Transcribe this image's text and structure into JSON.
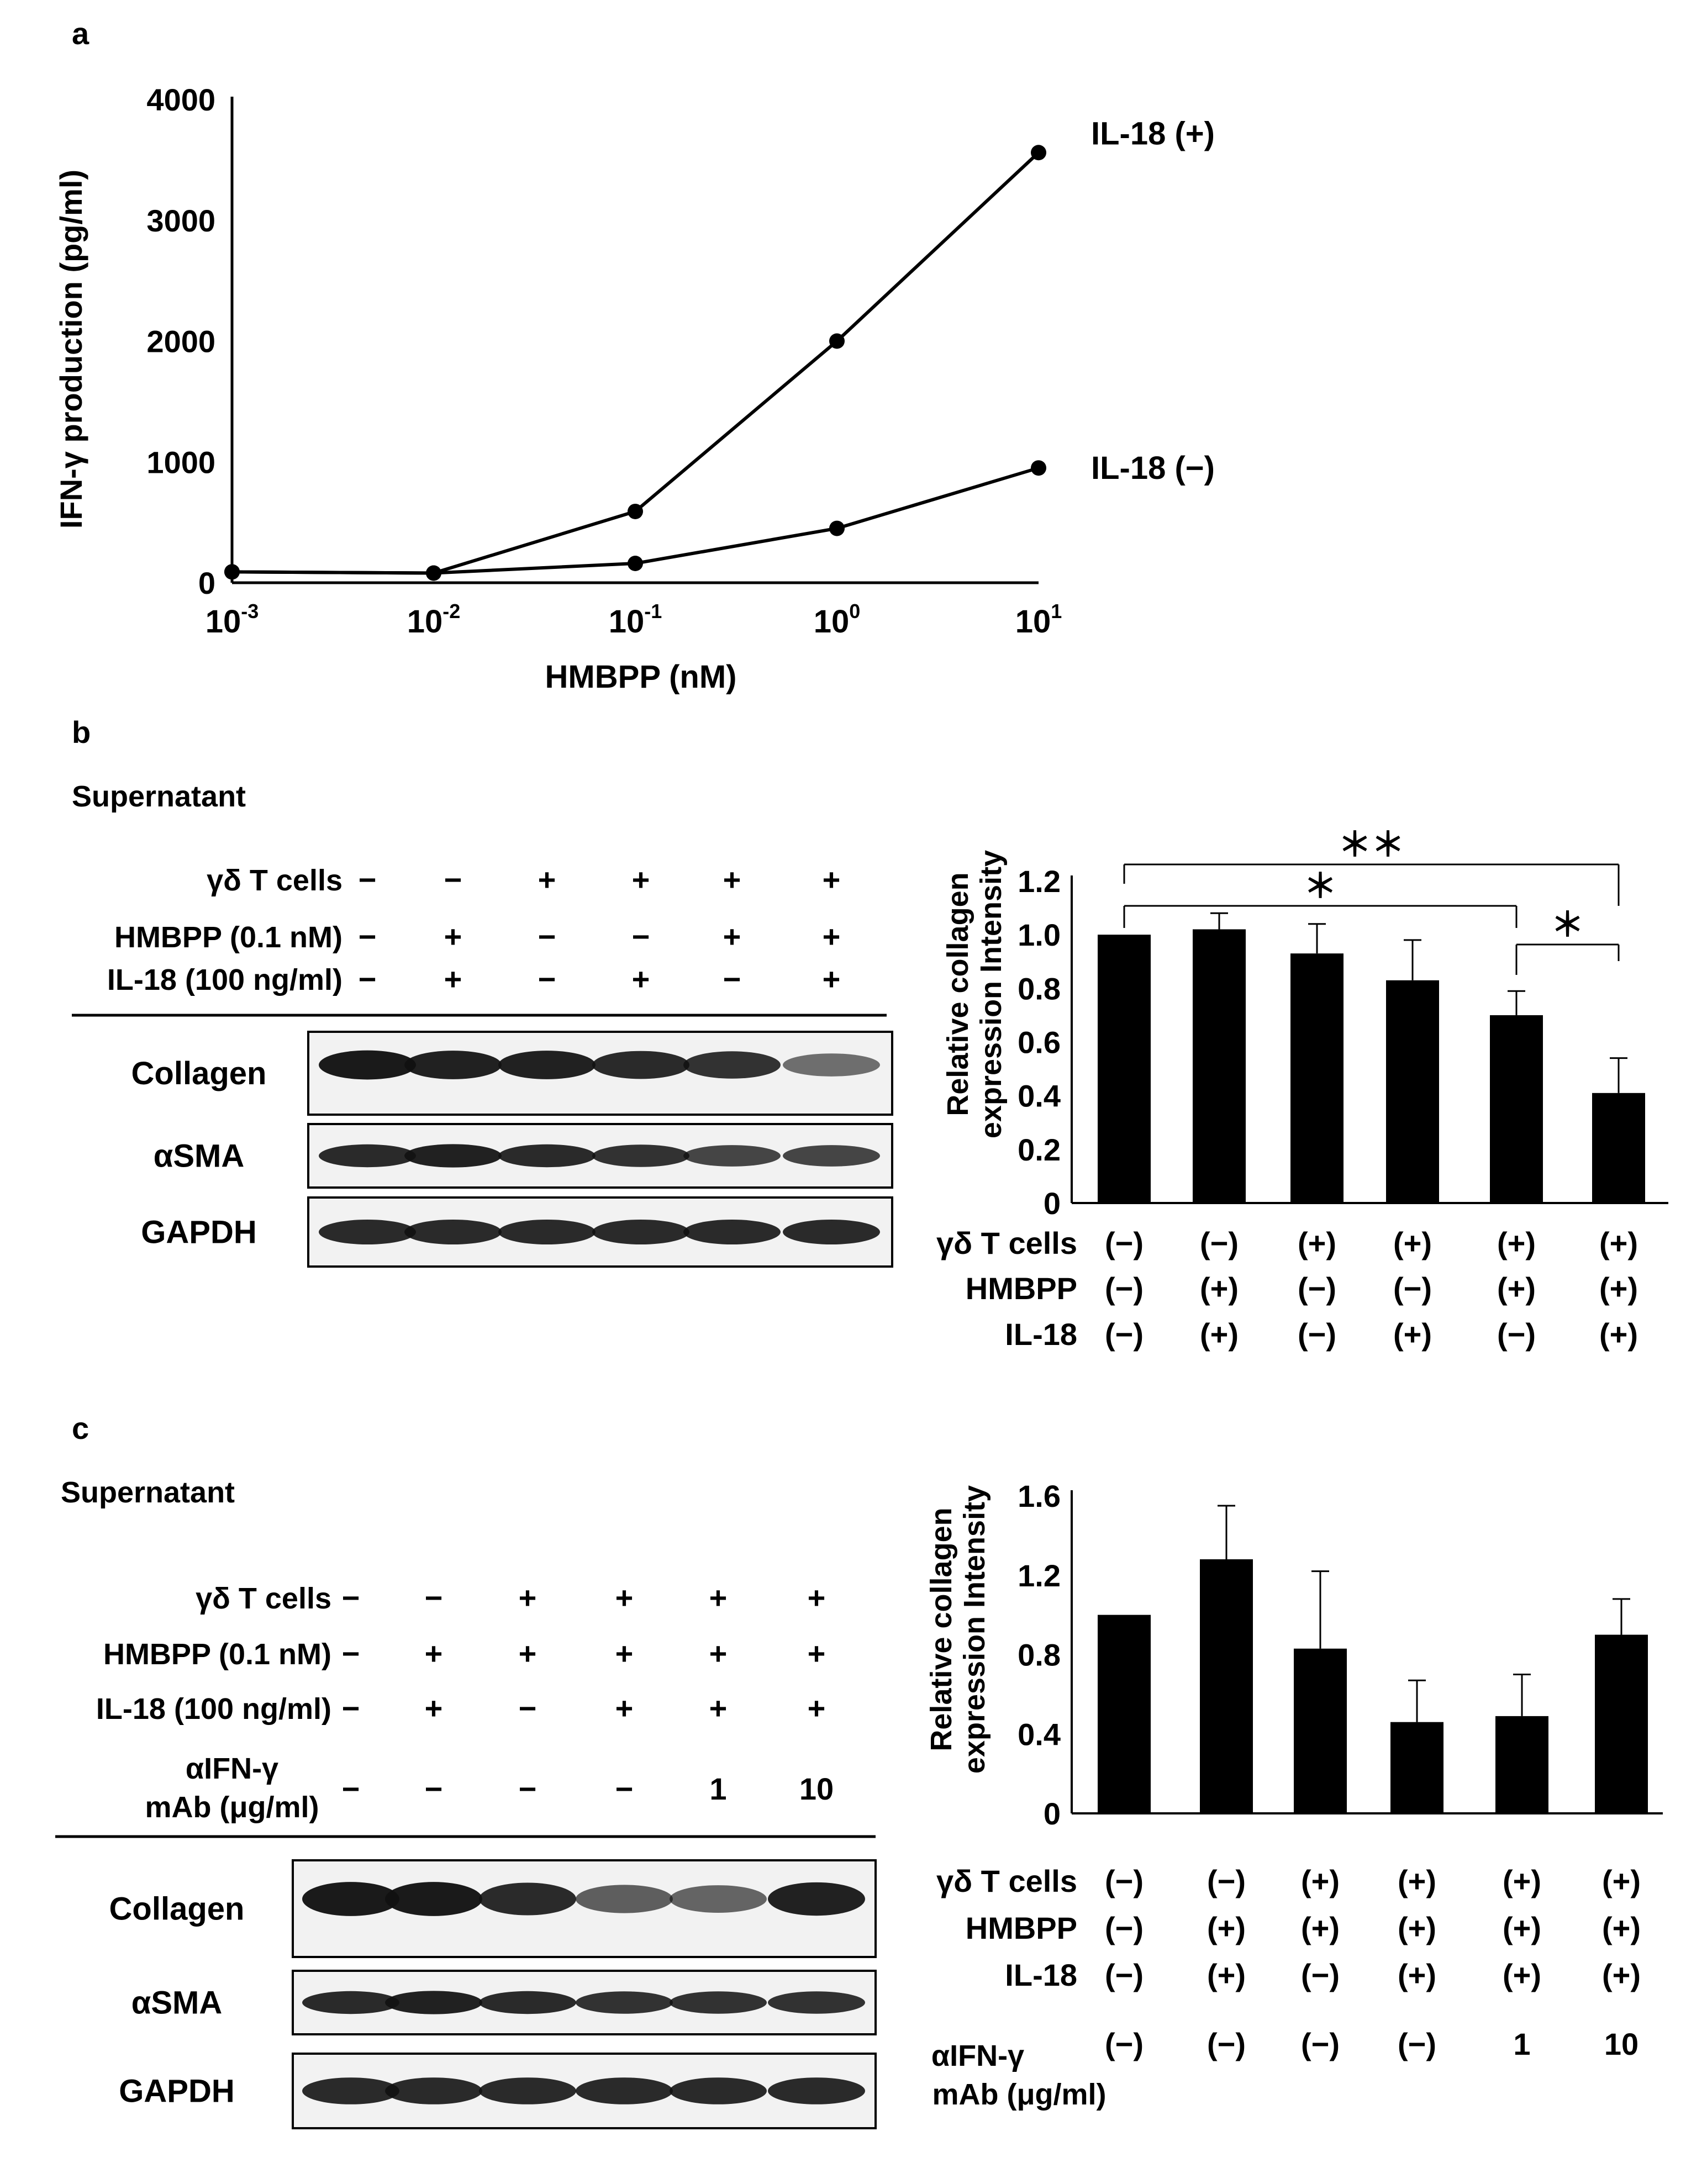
{
  "panel_a": {
    "label": "a",
    "chart_data": {
      "type": "line",
      "xlabel": "HMBPP (nM)",
      "ylabel": "IFN-γ production (pg/ml)",
      "x_scale": "log",
      "x": [
        0.001,
        0.01,
        0.1,
        1,
        10
      ],
      "x_ticks": [
        {
          "base": "10",
          "exp": "-3"
        },
        {
          "base": "10",
          "exp": "-2"
        },
        {
          "base": "10",
          "exp": "-1"
        },
        {
          "base": "10",
          "exp": "0"
        },
        {
          "base": "10",
          "exp": "1"
        }
      ],
      "y_ticks": [
        "0",
        "1000",
        "2000",
        "3000",
        "4000"
      ],
      "ylim": [
        0,
        4000
      ],
      "series": [
        {
          "name": "IL-18 (+)",
          "values": [
            90,
            80,
            590,
            2000,
            3560
          ]
        },
        {
          "name": "IL-18 (−)",
          "values": [
            90,
            80,
            160,
            450,
            950
          ]
        }
      ],
      "color": "#000000"
    }
  },
  "panel_b": {
    "label": "b",
    "blot": {
      "title": "Supernatant",
      "conditions": [
        {
          "name": "γδ T cells",
          "values": [
            "−",
            "−",
            "+",
            "+",
            "+",
            "+"
          ]
        },
        {
          "name": "HMBPP (0.1 nM)",
          "values": [
            "−",
            "+",
            "−",
            "−",
            "+",
            "+"
          ]
        },
        {
          "name": "IL-18 (100 ng/ml)",
          "values": [
            "−",
            "+",
            "−",
            "+",
            "−",
            "+"
          ]
        }
      ],
      "rows": [
        "Collagen",
        "αSMA",
        "GAPDH"
      ]
    },
    "chart_data": {
      "type": "bar",
      "ylabel_line1": "Relative collagen",
      "ylabel_line2": "expression Intensity",
      "y_ticks": [
        "0",
        "0.2",
        "0.4",
        "0.6",
        "0.8",
        "1.0",
        "1.2"
      ],
      "ylim": [
        0,
        1.2
      ],
      "values": [
        1.0,
        1.02,
        0.93,
        0.83,
        0.7,
        0.41
      ],
      "errors": [
        0.0,
        0.06,
        0.11,
        0.15,
        0.09,
        0.13
      ],
      "conditions": [
        {
          "name": "γδ T cells",
          "values": [
            "(−)",
            "(−)",
            "(+)",
            "(+)",
            "(+)",
            "(+)"
          ]
        },
        {
          "name": "HMBPP",
          "values": [
            "(−)",
            "(+)",
            "(−)",
            "(−)",
            "(+)",
            "(+)"
          ]
        },
        {
          "name": "IL-18",
          "values": [
            "(−)",
            "(+)",
            "(−)",
            "(+)",
            "(−)",
            "(+)"
          ]
        }
      ],
      "significance": [
        {
          "from": 1,
          "to": 6,
          "label": "＊＊"
        },
        {
          "from": 1,
          "to": 5,
          "label": "＊"
        },
        {
          "from": 5,
          "to": 6,
          "label": "＊"
        }
      ],
      "color": "#000000"
    }
  },
  "panel_c": {
    "label": "c",
    "blot": {
      "title": "Supernatant",
      "conditions": [
        {
          "name": "γδ T cells",
          "values": [
            "−",
            "−",
            "+",
            "+",
            "+",
            "+"
          ]
        },
        {
          "name": "HMBPP (0.1 nM)",
          "values": [
            "−",
            "+",
            "+",
            "+",
            "+",
            "+"
          ]
        },
        {
          "name": "IL-18 (100 ng/ml)",
          "values": [
            "−",
            "+",
            "−",
            "+",
            "+",
            "+"
          ]
        }
      ],
      "antibody_name_line1": "αIFN-γ",
      "antibody_name_line2": "mAb (μg/ml)",
      "antibody_values": [
        "−",
        "−",
        "−",
        "−",
        "1",
        "10"
      ],
      "rows": [
        "Collagen",
        "αSMA",
        "GAPDH"
      ]
    },
    "chart_data": {
      "type": "bar",
      "ylabel_line1": "Relative collagen",
      "ylabel_line2": "expression Intensity",
      "y_ticks": [
        "0",
        "0.4",
        "0.8",
        "1.2",
        "1.6"
      ],
      "ylim": [
        0,
        1.6
      ],
      "values": [
        1.0,
        1.28,
        0.83,
        0.46,
        0.49,
        0.9
      ],
      "errors": [
        0.0,
        0.27,
        0.39,
        0.21,
        0.21,
        0.18
      ],
      "conditions": [
        {
          "name": "γδ T cells",
          "values": [
            "(−)",
            "(−)",
            "(+)",
            "(+)",
            "(+)",
            "(+)"
          ]
        },
        {
          "name": "HMBPP",
          "values": [
            "(−)",
            "(+)",
            "(+)",
            "(+)",
            "(+)",
            "(+)"
          ]
        },
        {
          "name": "IL-18",
          "values": [
            "(−)",
            "(+)",
            "(−)",
            "(+)",
            "(+)",
            "(+)"
          ]
        }
      ],
      "antibody_name_line1": "αIFN-γ",
      "antibody_name_line2": "mAb (μg/ml)",
      "antibody_values": [
        "(−)",
        "(−)",
        "(−)",
        "(−)",
        "1",
        "10"
      ],
      "color": "#000000"
    }
  }
}
